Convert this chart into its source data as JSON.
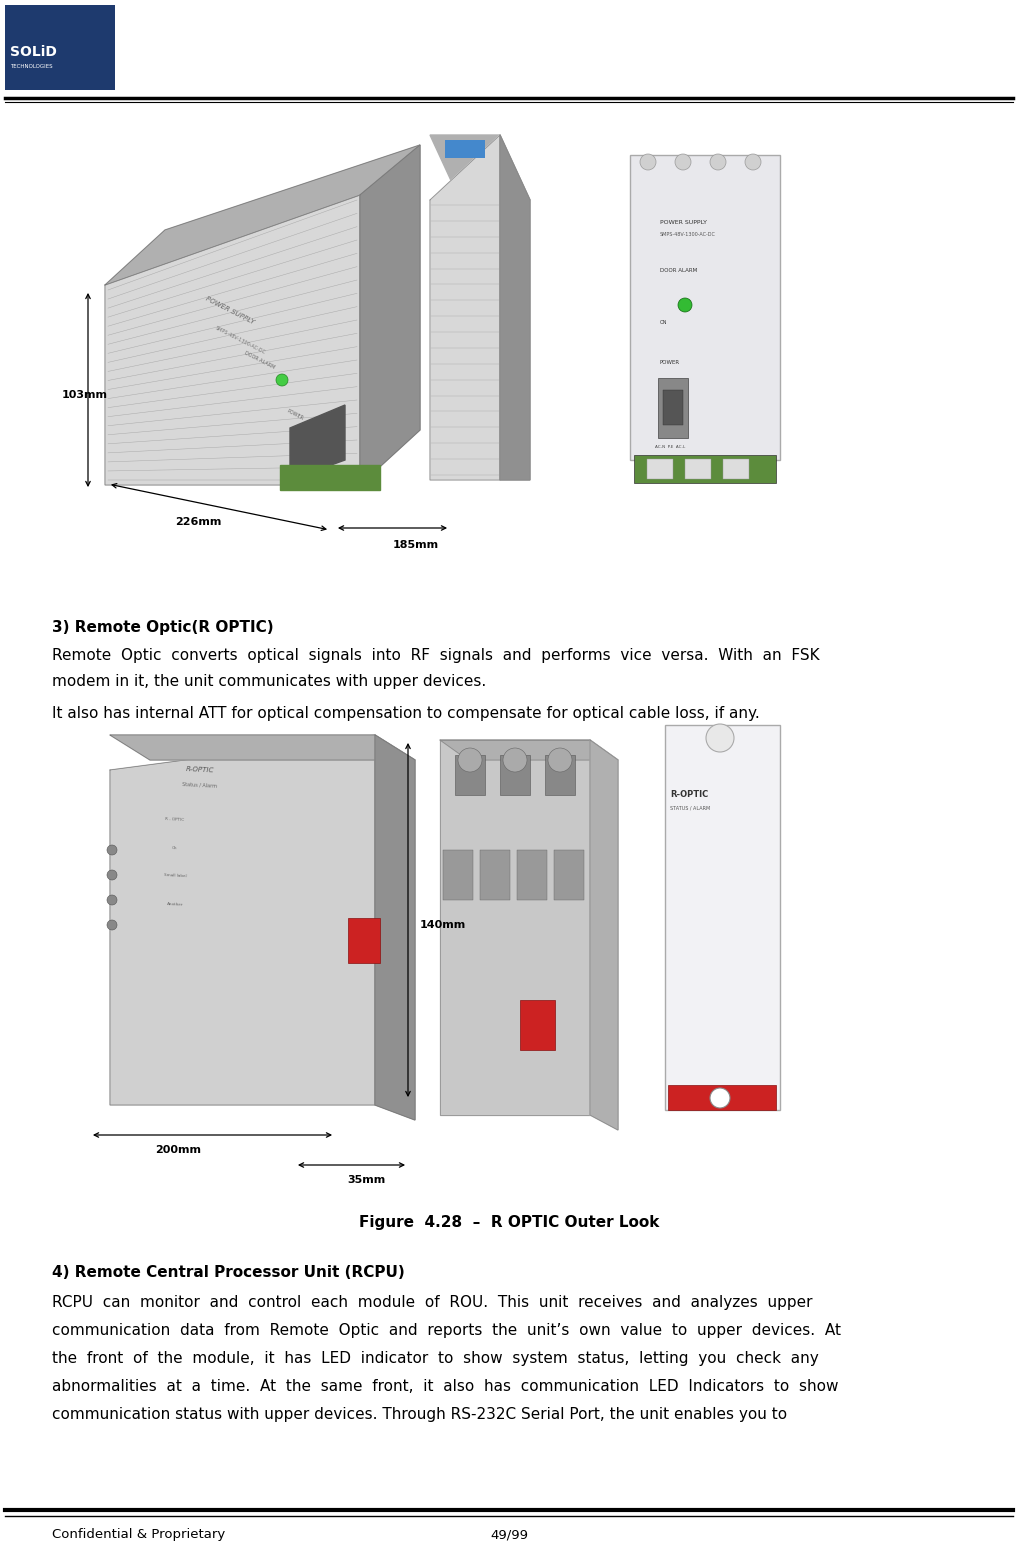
{
  "page_width": 10.18,
  "page_height": 15.6,
  "dpi": 100,
  "bg_color": "#ffffff",
  "header_logo_blue": "#1e3a6e",
  "header_line_color": "#000000",
  "footer_line_color": "#000000",
  "footer_text_left": "Confidential & Proprietary",
  "footer_text_right": "49/99",
  "footer_fontsize": 9.5,
  "section3_title": "3) Remote Optic(R OPTIC)",
  "section3_body1a": "Remote  Optic  converts  optical  signals  into  RF  signals  and  performs  vice  versa.  With  an  FSK",
  "section3_body1b": "modem in it, the unit communicates with upper devices.",
  "section3_body2": "It also has internal ATT for optical compensation to compensate for optical cable loss, if any.",
  "figure_caption": "Figure  4.28  –  R OPTIC Outer Look",
  "section4_title": "4) Remote Central Processor Unit (RCPU)",
  "section4_line1": "RCPU  can  monitor  and  control  each  module  of  ROU.  This  unit  receives  and  analyzes  upper",
  "section4_line2": "communication  data  from  Remote  Optic  and  reports  the  unit’s  own  value  to  upper  devices.  At",
  "section4_line3": "the  front  of  the  module,  it  has  LED  indicator  to  show  system  status,  letting  you  check  any",
  "section4_line4": "abnormalities  at  a  time.  At  the  same  front,  it  also  has  communication  LED  Indicators  to  show",
  "section4_line5": "communication status with upper devices. Through RS-232C Serial Port, the unit enables you to",
  "title_fontsize": 11,
  "body_fontsize": 11,
  "text_color": "#000000",
  "dim_label_226": "226mm",
  "dim_label_185": "185mm",
  "dim_label_103": "103mm",
  "dim_label_140": "140mm",
  "dim_label_200": "200mm",
  "dim_label_35": "35mm",
  "gray_light": "#cccccc",
  "gray_mid": "#b0b0b0",
  "gray_dark": "#909090",
  "gray_face": "#d8d8d8",
  "panel_bg": "#e8e8ec",
  "green_connector": "#5c8c3c",
  "red_connector": "#cc2222",
  "blue_label": "#4488cc"
}
